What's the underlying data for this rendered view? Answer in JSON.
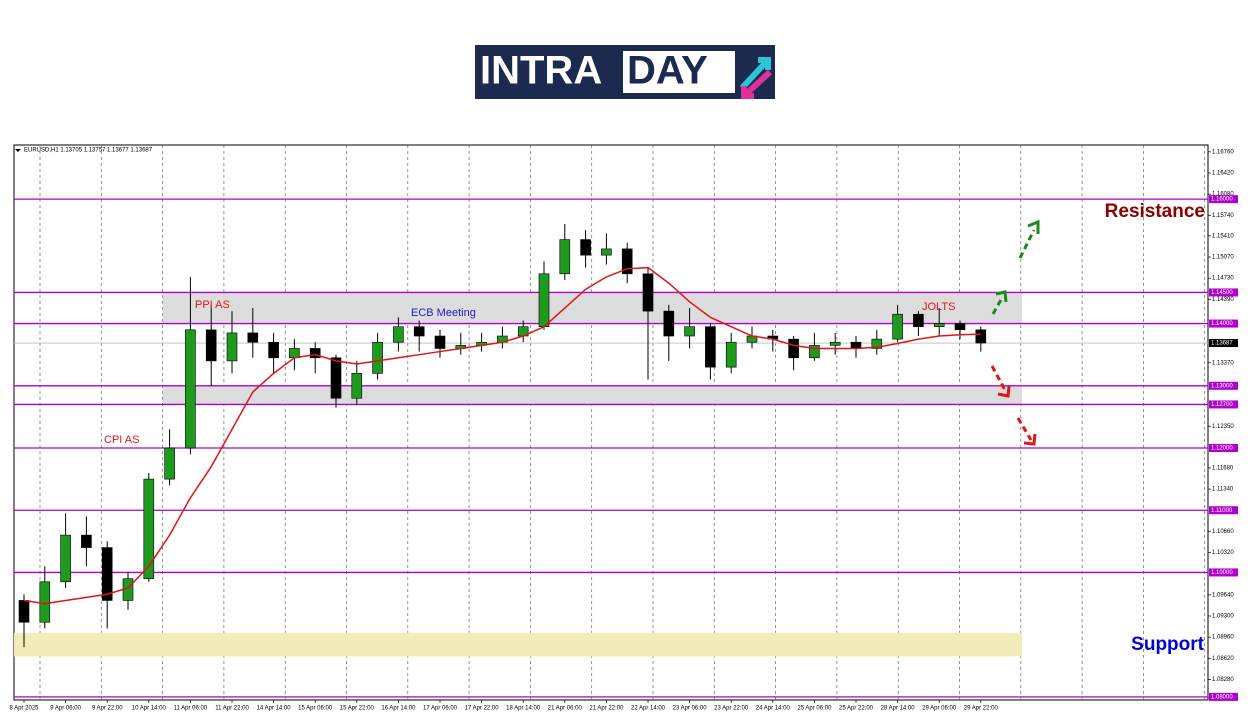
{
  "logo": [
    "INTRA",
    "DAY"
  ],
  "chart_data": {
    "type": "candlestick",
    "header": "EURUSD,H1  1.13705 1.13757 1.13677 1.13687",
    "categories": [
      "8 Apr 2025",
      null,
      "9 Apr 06:00",
      null,
      "9 Apr 22:00",
      null,
      "10 Apr 14:00",
      null,
      "11 Apr 06:00",
      null,
      "11 Apr 22:00",
      null,
      "14 Apr 14:00",
      null,
      "15 Apr 06:00",
      null,
      "15 Apr 22:00",
      null,
      "16 Apr 14:00",
      null,
      "17 Apr 06:00",
      null,
      "17 Apr 22:00",
      null,
      "18 Apr 14:00",
      null,
      "21 Apr 06:00",
      null,
      "21 Apr 22:00",
      null,
      "22 Apr 14:00",
      null,
      "23 Apr 06:00",
      null,
      "23 Apr 22:00",
      null,
      "24 Apr 14:00",
      null,
      "25 Apr 06:00",
      null,
      "25 Apr 22:00",
      null,
      "28 Apr 14:00",
      null,
      "29 Apr 06:00",
      null,
      "29 Apr 22:00"
    ],
    "open": [
      1.0955,
      1.092,
      1.0985,
      1.106,
      1.104,
      1.0955,
      1.099,
      1.115,
      1.12,
      1.139,
      1.134,
      1.1385,
      1.137,
      1.1345,
      1.136,
      1.1345,
      1.128,
      1.132,
      1.137,
      1.1395,
      1.138,
      1.136,
      1.1365,
      1.137,
      1.138,
      1.1395,
      1.148,
      1.1535,
      1.151,
      1.152,
      1.148,
      1.142,
      1.138,
      1.1395,
      1.133,
      1.137,
      1.138,
      1.1375,
      1.1345,
      1.1365,
      1.137,
      1.136,
      1.1375,
      1.1415,
      1.1395,
      1.14,
      1.139
    ],
    "high": [
      1.0965,
      1.101,
      1.1095,
      1.109,
      1.105,
      1.1,
      1.116,
      1.123,
      1.1475,
      1.143,
      1.142,
      1.1425,
      1.1385,
      1.1375,
      1.137,
      1.135,
      1.134,
      1.1385,
      1.141,
      1.1405,
      1.139,
      1.1385,
      1.1385,
      1.1395,
      1.1405,
      1.15,
      1.156,
      1.155,
      1.1545,
      1.153,
      1.149,
      1.143,
      1.1425,
      1.14,
      1.1385,
      1.1395,
      1.139,
      1.138,
      1.1385,
      1.1385,
      1.138,
      1.139,
      1.143,
      1.142,
      1.1425,
      1.1405,
      1.1395
    ],
    "low": [
      1.088,
      1.091,
      1.0975,
      1.101,
      1.091,
      1.094,
      1.0985,
      1.114,
      1.119,
      1.13,
      1.132,
      1.1345,
      1.132,
      1.1325,
      1.132,
      1.1265,
      1.127,
      1.131,
      1.1355,
      1.1355,
      1.1345,
      1.135,
      1.1355,
      1.136,
      1.137,
      1.139,
      1.147,
      1.149,
      1.1495,
      1.1465,
      1.131,
      1.134,
      1.136,
      1.131,
      1.132,
      1.136,
      1.1355,
      1.1325,
      1.134,
      1.135,
      1.1345,
      1.135,
      1.137,
      1.138,
      1.138,
      1.1375,
      1.1355
    ],
    "close": [
      1.092,
      1.0985,
      1.106,
      1.104,
      1.0955,
      1.099,
      1.115,
      1.12,
      1.139,
      1.134,
      1.1385,
      1.137,
      1.1345,
      1.136,
      1.1345,
      1.128,
      1.132,
      1.137,
      1.1395,
      1.138,
      1.136,
      1.1365,
      1.137,
      1.138,
      1.1395,
      1.148,
      1.1535,
      1.151,
      1.152,
      1.148,
      1.142,
      1.138,
      1.1395,
      1.133,
      1.137,
      1.138,
      1.1375,
      1.1345,
      1.1365,
      1.137,
      1.136,
      1.1375,
      1.1415,
      1.1395,
      1.14,
      1.139,
      1.13687
    ],
    "up_color": "#1e9a1e",
    "down_color": "#000000",
    "overlays": [
      {
        "color": "#e01515",
        "values": [
          1.0955,
          1.095,
          1.0955,
          1.096,
          1.0965,
          1.0975,
          1.101,
          1.106,
          1.112,
          1.117,
          1.123,
          1.129,
          1.132,
          1.1345,
          1.135,
          1.134,
          1.1335,
          1.134,
          1.1345,
          1.135,
          1.1355,
          1.136,
          1.1365,
          1.137,
          1.138,
          1.1395,
          1.1425,
          1.1455,
          1.1475,
          1.1488,
          1.149,
          1.1465,
          1.1435,
          1.141,
          1.1395,
          1.138,
          1.1375,
          1.1365,
          1.136,
          1.136,
          1.136,
          1.1362,
          1.1368,
          1.1375,
          1.138,
          1.1382,
          1.1383
        ]
      }
    ],
    "ylim": [
      1.0795,
      1.1687
    ],
    "yticks": [
      {
        "value": 1.1676,
        "label": "1.16760"
      },
      {
        "value": 1.1642,
        "label": "1.16420"
      },
      {
        "value": 1.1608,
        "label": "1.16080"
      },
      {
        "value": 1.1574,
        "label": "1.15740"
      },
      {
        "value": 1.1541,
        "label": "1.15410"
      },
      {
        "value": 1.1507,
        "label": "1.15070"
      },
      {
        "value": 1.1473,
        "label": "1.14730"
      },
      {
        "value": 1.1439,
        "label": "1.14390"
      },
      {
        "value": 1.1337,
        "label": "1.13370"
      },
      {
        "value": 1.1235,
        "label": "1.12350"
      },
      {
        "value": 1.1168,
        "label": "1.11680"
      },
      {
        "value": 1.1134,
        "label": "1.11340"
      },
      {
        "value": 1.1066,
        "label": "1.10660"
      },
      {
        "value": 1.1032,
        "label": "1.10320"
      },
      {
        "value": 1.0964,
        "label": "1.09640"
      },
      {
        "value": 1.093,
        "label": "1.09300"
      },
      {
        "value": 1.0896,
        "label": "1.08960"
      },
      {
        "value": 1.0862,
        "label": "1.08620"
      },
      {
        "value": 1.0828,
        "label": "1.08280"
      }
    ],
    "levels": [
      {
        "value": 1.16,
        "label": "1.16000"
      },
      {
        "value": 1.145,
        "label": "1.14500"
      },
      {
        "value": 1.14,
        "label": "1.14000"
      },
      {
        "value": 1.13,
        "label": "1.13000"
      },
      {
        "value": 1.127,
        "label": "1.12700"
      },
      {
        "value": 1.12,
        "label": "1.12000"
      },
      {
        "value": 1.11,
        "label": "1.11000"
      },
      {
        "value": 1.1,
        "label": "1.10000"
      },
      {
        "value": 1.08,
        "label": "1.08000"
      }
    ],
    "level_color": "#b000d0",
    "last_price": {
      "value": 1.13687,
      "label": "1.13687"
    },
    "zones": [
      {
        "range": [
          1.14,
          1.145
        ],
        "color": "#dcdcdc"
      },
      {
        "range": [
          1.127,
          1.13
        ],
        "color": "#dcdcdc"
      },
      {
        "range": [
          1.0865,
          1.0903
        ],
        "color": "#f3ecb8"
      }
    ],
    "annotations": [
      "CPI AS",
      "PPI AS",
      "ECB Meeting",
      "JOLTS"
    ],
    "resistance": "Resistance",
    "support": "Support"
  }
}
